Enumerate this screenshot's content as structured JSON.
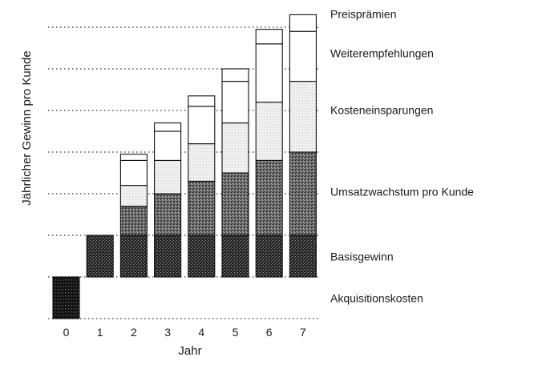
{
  "chart_data": {
    "type": "bar",
    "stacked": true,
    "xlabel": "Jahr",
    "ylabel": "Jährlicher Gewinn pro Kunde",
    "categories": [
      "0",
      "1",
      "2",
      "3",
      "4",
      "5",
      "6",
      "7"
    ],
    "series": [
      {
        "name": "Akquisitionskosten",
        "values": [
          -1,
          0,
          0,
          0,
          0,
          0,
          0,
          0
        ]
      },
      {
        "name": "Basisgewinn",
        "values": [
          0,
          1,
          1,
          1,
          1,
          1,
          1,
          1
        ]
      },
      {
        "name": "Umsatzwachstum pro Kunde",
        "values": [
          0,
          0,
          0.7,
          1.0,
          1.3,
          1.5,
          1.8,
          2.0
        ]
      },
      {
        "name": "Kosteneinsparungen",
        "values": [
          0,
          0,
          0.5,
          0.8,
          0.9,
          1.2,
          1.4,
          1.7
        ]
      },
      {
        "name": "Weiterempfehlungen",
        "values": [
          0,
          0,
          0.6,
          0.7,
          0.9,
          1.0,
          1.4,
          1.2
        ]
      },
      {
        "name": "Preisprämien",
        "values": [
          0,
          0,
          0.15,
          0.2,
          0.25,
          0.3,
          0.35,
          0.4
        ]
      }
    ],
    "grid": true,
    "legend_position": "right"
  }
}
